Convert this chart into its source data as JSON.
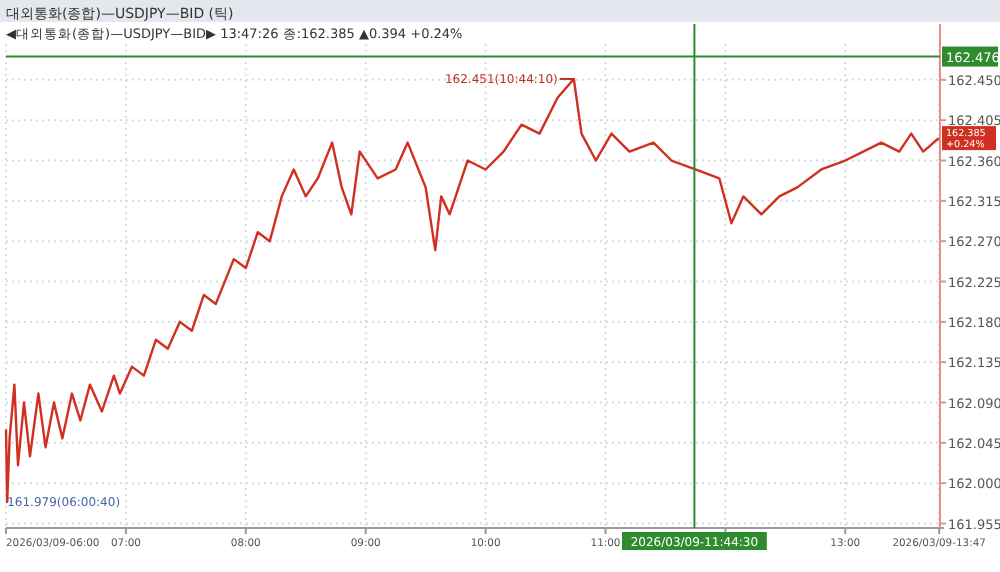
{
  "chart_data": {
    "type": "line",
    "title": "대외통화(종합)—USDJPY—BID (틱)",
    "subtitle": "◀대외통화(종합)—USDJPY—BID▶ 13:47:26 종:162.385 ▲0.394 +0.24%",
    "x": [
      6.0,
      6.01,
      6.03,
      6.07,
      6.1,
      6.15,
      6.2,
      6.27,
      6.33,
      6.4,
      6.47,
      6.55,
      6.62,
      6.7,
      6.8,
      6.9,
      6.95,
      7.05,
      7.15,
      7.25,
      7.35,
      7.45,
      7.55,
      7.65,
      7.75,
      7.9,
      8.0,
      8.1,
      8.2,
      8.3,
      8.4,
      8.5,
      8.6,
      8.72,
      8.8,
      8.88,
      8.95,
      9.1,
      9.25,
      9.35,
      9.5,
      9.58,
      9.63,
      9.7,
      9.85,
      10.0,
      10.15,
      10.3,
      10.45,
      10.6,
      10.736,
      10.8,
      10.92,
      11.05,
      11.2,
      11.4,
      11.55,
      11.75,
      11.95,
      12.05,
      12.15,
      12.3,
      12.45,
      12.6,
      12.8,
      13.0,
      13.15,
      13.3,
      13.45,
      13.55,
      13.65,
      13.78
    ],
    "series": [
      {
        "color": "#d03020",
        "values": [
          162.06,
          161.979,
          162.05,
          162.11,
          162.02,
          162.09,
          162.03,
          162.1,
          162.04,
          162.09,
          162.05,
          162.1,
          162.07,
          162.11,
          162.08,
          162.12,
          162.1,
          162.13,
          162.12,
          162.16,
          162.15,
          162.18,
          162.17,
          162.21,
          162.2,
          162.25,
          162.24,
          162.28,
          162.27,
          162.32,
          162.35,
          162.32,
          162.34,
          162.38,
          162.33,
          162.3,
          162.37,
          162.34,
          162.35,
          162.38,
          162.33,
          162.26,
          162.32,
          162.3,
          162.36,
          162.35,
          162.37,
          162.4,
          162.39,
          162.43,
          162.451,
          162.39,
          162.36,
          162.39,
          162.37,
          162.38,
          162.36,
          162.35,
          162.34,
          162.29,
          162.32,
          162.3,
          162.32,
          162.33,
          162.35,
          162.36,
          162.37,
          162.38,
          162.37,
          162.39,
          162.37,
          162.385
        ]
      }
    ],
    "xlim": [
      6.0,
      13.79
    ],
    "xticks": [
      {
        "value": 6,
        "label": "2026/03/09-06:00"
      },
      {
        "value": 7,
        "label": "07:00"
      },
      {
        "value": 8,
        "label": "08:00"
      },
      {
        "value": 9,
        "label": "09:00"
      },
      {
        "value": 10,
        "label": "10:00"
      },
      {
        "value": 11,
        "label": "11:00"
      },
      {
        "value": 12,
        "label": null
      },
      {
        "value": 13,
        "label": "13:00"
      },
      {
        "value": 13.783,
        "label": "2026/03/09-13:47"
      }
    ],
    "ylim": [
      161.95,
      162.49
    ],
    "yticks": [
      {
        "value": 161.955,
        "label": "161.955"
      },
      {
        "value": 162.0,
        "label": "162.000"
      },
      {
        "value": 162.045,
        "label": "162.045"
      },
      {
        "value": 162.09,
        "label": "162.090"
      },
      {
        "value": 162.135,
        "label": "162.135"
      },
      {
        "value": 162.18,
        "label": "162.180"
      },
      {
        "value": 162.225,
        "label": "162.225"
      },
      {
        "value": 162.27,
        "label": "162.270"
      },
      {
        "value": 162.315,
        "label": "162.315"
      },
      {
        "value": 162.36,
        "label": "162.360"
      },
      {
        "value": 162.405,
        "label": "162.405"
      },
      {
        "value": 162.45,
        "label": "162.450"
      }
    ],
    "grid": true,
    "ref_lines": [
      {
        "axis": "x",
        "value": 11.741667,
        "color": "#2e8b2e"
      },
      {
        "axis": "y",
        "value": 162.476,
        "label": "162.476",
        "color": "#2e8b2e"
      }
    ],
    "annotations": [
      {
        "text": "162.451(10:44:10)",
        "x": 10.736,
        "y": 162.451
      },
      {
        "text": "161.979(06:00:40)",
        "x": 6.01,
        "y": 161.979
      },
      {
        "text": "162.385 +0.24%",
        "x": 13.78,
        "y": 162.385
      },
      "2026/03/09-11:44:30"
    ]
  }
}
